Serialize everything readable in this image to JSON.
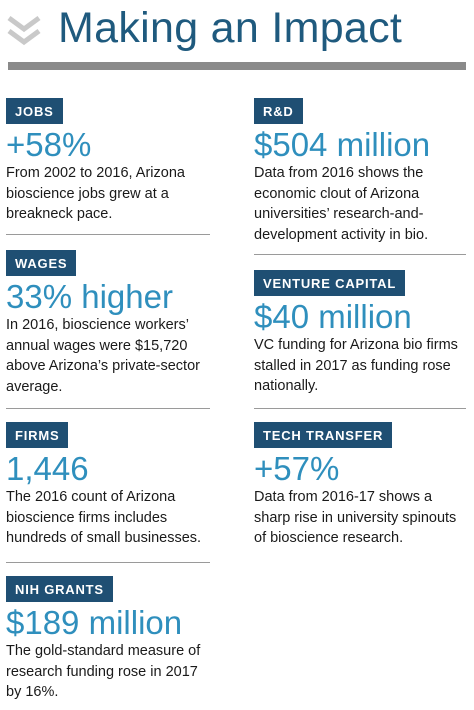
{
  "title": "Making an Impact",
  "cards": [
    {
      "label": "JOBS",
      "stat": "+58%",
      "desc": "From 2002 to 2016, Arizona bioscience jobs grew at a breakneck pace."
    },
    {
      "label": "WAGES",
      "stat": "33% higher",
      "desc": "In 2016, bioscience workers’ annual wages were $15,720 above Arizona’s private-sector average."
    },
    {
      "label": "FIRMS",
      "stat": "1,446",
      "desc": "The 2016 count of Arizona bioscience firms includes hundreds of small businesses."
    },
    {
      "label": "NIH GRANTS",
      "stat": "$189 million",
      "desc": "The gold-standard measure of research funding rose in 2017 by 16%."
    },
    {
      "label": "R&D",
      "stat": "$504 million",
      "desc": "Data from 2016 shows the economic clout of Arizona universities’ research-and-development activity in bio."
    },
    {
      "label": "VENTURE CAPITAL",
      "stat": "$40 million",
      "desc": "VC funding for Arizona bio firms stalled in 2017 as funding rose nationally."
    },
    {
      "label": "TECH TRANSFER",
      "stat": "+57%",
      "desc": "Data from 2016-17 shows a sharp rise in university spinouts of bioscience research."
    }
  ],
  "colors": {
    "title": "#1f5a7e",
    "badge": "#1f4f73",
    "stat": "#2f8fbd",
    "rule": "#8a8a8a"
  }
}
